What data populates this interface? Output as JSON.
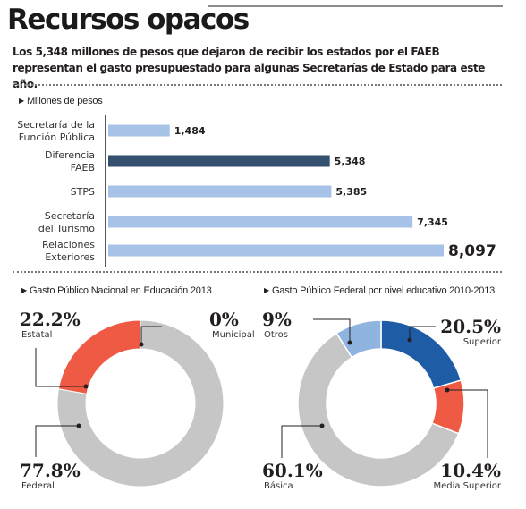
{
  "header": {
    "title": "Recursos opacos",
    "subtitle": "Los 5,348 millones de pesos que dejaron de recibir los estados por el FAEB representan el gasto presupuestado para algunas Secretarías de Estado para este año."
  },
  "colors": {
    "bar_light": "#a6c2e6",
    "bar_highlight": "#34506e",
    "estatal": "#ef5a44",
    "federal": "#c6c6c6",
    "otros": "#8fb4e0",
    "superior": "#1e5da6",
    "media_superior": "#ef5a44",
    "basica": "#c6c6c6"
  },
  "chart_data": [
    {
      "type": "bar",
      "orientation": "horizontal",
      "unit_label": "Millones de pesos",
      "categories": [
        [
          "Secretaría de la",
          "Función Pública"
        ],
        [
          "Diferencia",
          "FAEB"
        ],
        [
          "STPS"
        ],
        [
          "Secretaría",
          "del Turismo"
        ],
        [
          "Relaciones",
          "Exteriores"
        ]
      ],
      "values": [
        1484,
        5348,
        5385,
        7345,
        8097
      ],
      "value_labels": [
        "1,484",
        "5,348",
        "5,385",
        "7,345",
        "8,097"
      ],
      "highlight_index": 1,
      "emphasis_index": 4
    },
    {
      "type": "pie",
      "title": "Gasto Público Nacional en Educación 2013",
      "slices": [
        {
          "label": "Federal",
          "pct_label": "77.8%",
          "value": 77.8
        },
        {
          "label": "Municipal",
          "pct_label": "0%",
          "value": 0
        },
        {
          "label": "Estatal",
          "pct_label": "22.2%",
          "value": 22.2
        }
      ]
    },
    {
      "type": "pie",
      "title": "Gasto Público Federal por nivel educativo 2010-2013",
      "slices": [
        {
          "label": "Superior",
          "pct_label": "20.5%",
          "value": 20.5
        },
        {
          "label": "Media Superior",
          "pct_label": "10.4%",
          "value": 10.4
        },
        {
          "label": "Básica",
          "pct_label": "60.1%",
          "value": 60.1
        },
        {
          "label": "Otros",
          "pct_label": "9%",
          "value": 9
        }
      ]
    }
  ]
}
